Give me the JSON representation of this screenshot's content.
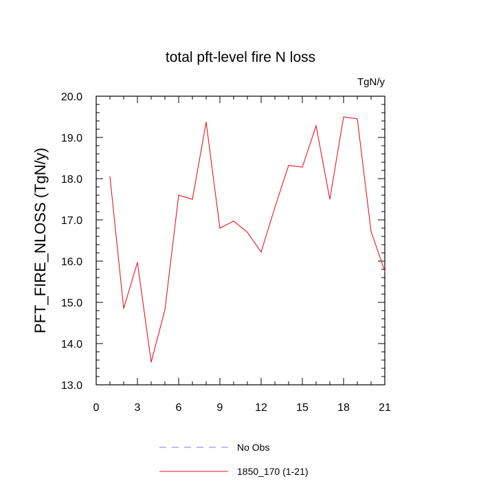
{
  "chart_data": {
    "type": "line",
    "title": "total pft-level fire N loss",
    "units": "TgN/y",
    "ylabel": "PFT_FIRE_NLOSS  (TgN/y)",
    "xlabel": "",
    "xlim": [
      0,
      21
    ],
    "ylim": [
      13.0,
      20.0
    ],
    "xticks": [
      0,
      3,
      6,
      9,
      12,
      15,
      18,
      21
    ],
    "yticks": [
      13.0,
      14.0,
      15.0,
      16.0,
      17.0,
      18.0,
      19.0,
      20.0
    ],
    "series": [
      {
        "name": "1850_170 (1-21)",
        "color": "#e8141e",
        "x": [
          1,
          2,
          3,
          4,
          5,
          6,
          7,
          8,
          9,
          10,
          11,
          12,
          13,
          14,
          15,
          16,
          17,
          18,
          19,
          20,
          21
        ],
        "values": [
          18.05,
          14.85,
          15.97,
          13.55,
          14.82,
          17.6,
          17.5,
          19.37,
          16.8,
          16.97,
          16.7,
          16.22,
          17.3,
          18.32,
          18.28,
          19.28,
          17.5,
          19.5,
          19.45,
          16.72,
          15.75
        ]
      }
    ],
    "legend": {
      "position": "bottom",
      "entries": [
        {
          "label": "No Obs",
          "color": "#7b7bf0",
          "style": "dashed"
        },
        {
          "label": "1850_170 (1-21)",
          "color": "#e8141e",
          "style": "solid"
        }
      ]
    }
  }
}
